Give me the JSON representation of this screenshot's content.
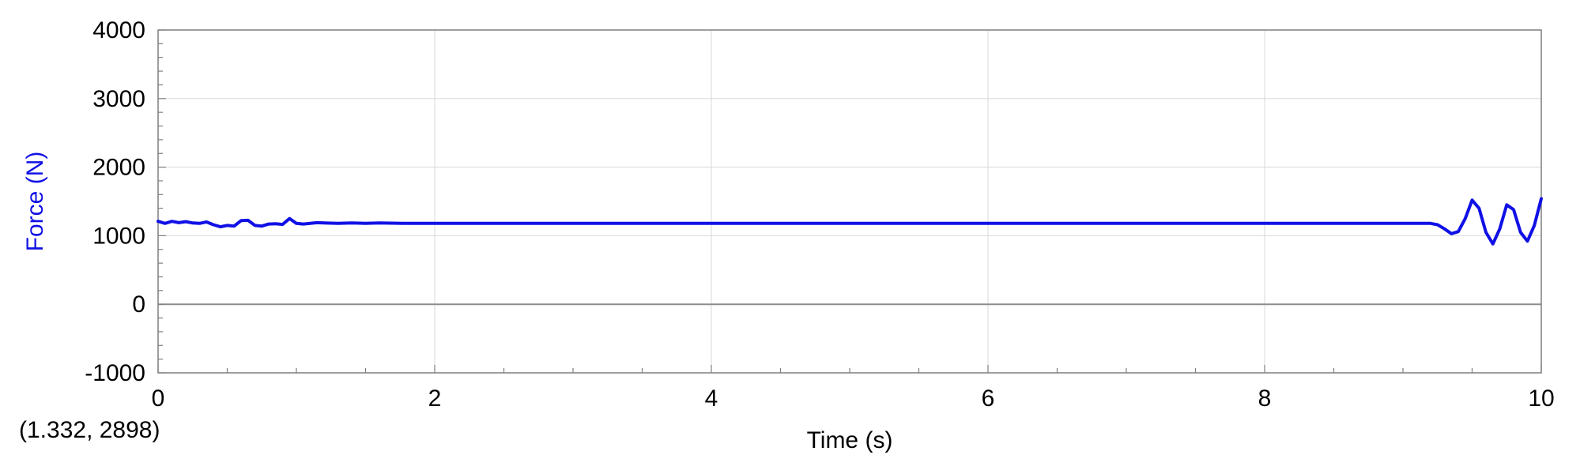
{
  "coordinate_readout": "(1.332, 2898)",
  "colors": {
    "series": "#1010e6",
    "ylabel": "#1010e6",
    "gridline": "#d9d9d9",
    "zero_line": "#8c8c8c",
    "frame": "#7f7f7f"
  },
  "chart_data": {
    "type": "line",
    "xlabel": "Time (s)",
    "ylabel": "Force (N)",
    "xlim": [
      0,
      10
    ],
    "ylim": [
      -1000,
      4000
    ],
    "x_ticks": [
      "0",
      "2",
      "4",
      "6",
      "8",
      "10"
    ],
    "y_ticks": [
      "4000",
      "3000",
      "2000",
      "1000",
      "0",
      "-1000"
    ],
    "grid": true,
    "series": [
      {
        "x": [
          0,
          0.05,
          0.1,
          0.15,
          0.2,
          0.25,
          0.3,
          0.35,
          0.4,
          0.45,
          0.5,
          0.55,
          0.6,
          0.65,
          0.7,
          0.75,
          0.8,
          0.85,
          0.9,
          0.95,
          1.0,
          1.05,
          1.1,
          1.15,
          1.2,
          1.3,
          1.4,
          1.5,
          1.6,
          1.8,
          2.0,
          2.5,
          3.0,
          3.5,
          4.0,
          4.5,
          5.0,
          5.5,
          6.0,
          6.5,
          7.0,
          7.5,
          8.0,
          8.5,
          9.0,
          9.2,
          9.25,
          9.3,
          9.35,
          9.4,
          9.45,
          9.5,
          9.55,
          9.6,
          9.65,
          9.7,
          9.75,
          9.8,
          9.85,
          9.9,
          9.95,
          10.0
        ],
        "y": [
          1210,
          1180,
          1210,
          1190,
          1205,
          1185,
          1180,
          1200,
          1160,
          1130,
          1150,
          1140,
          1220,
          1225,
          1150,
          1140,
          1170,
          1175,
          1165,
          1250,
          1180,
          1170,
          1180,
          1190,
          1185,
          1180,
          1185,
          1180,
          1185,
          1180,
          1180,
          1180,
          1180,
          1180,
          1180,
          1180,
          1180,
          1180,
          1180,
          1180,
          1180,
          1180,
          1180,
          1180,
          1180,
          1180,
          1160,
          1100,
          1030,
          1060,
          1250,
          1520,
          1400,
          1050,
          880,
          1100,
          1450,
          1380,
          1050,
          920,
          1150,
          1540
        ]
      }
    ]
  }
}
